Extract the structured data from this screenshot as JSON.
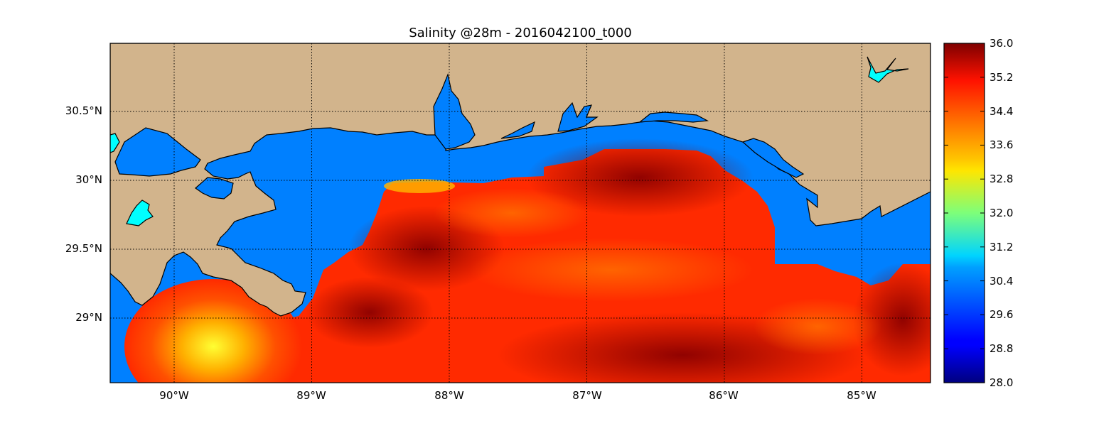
{
  "title": "Salinity @28m - 2016042100_t000",
  "x_ticks": [
    "90°W",
    "89°W",
    "88°W",
    "87°W",
    "86°W",
    "85°W"
  ],
  "y_ticks": [
    "30.5°N",
    "30°N",
    "29.5°N",
    "29°N"
  ],
  "colorbar": {
    "colormap": "jet",
    "min": 28.0,
    "max": 36.0,
    "ticks": [
      "36.0",
      "35.2",
      "34.4",
      "33.6",
      "32.8",
      "32.0",
      "31.2",
      "30.4",
      "29.6",
      "28.8",
      "28.0"
    ]
  },
  "extent": {
    "lon": [
      -90.5,
      -84.5
    ],
    "lat": [
      28.55,
      31.0
    ]
  },
  "colors": {
    "land": "#D2B48C",
    "water_fill": "#0080FF",
    "lake": "#00FFFF",
    "coastline": "#000000",
    "high_salinity": "#8B0000",
    "mid_salinity": "#FF2A00",
    "low_salinity": "#FFD700"
  }
}
